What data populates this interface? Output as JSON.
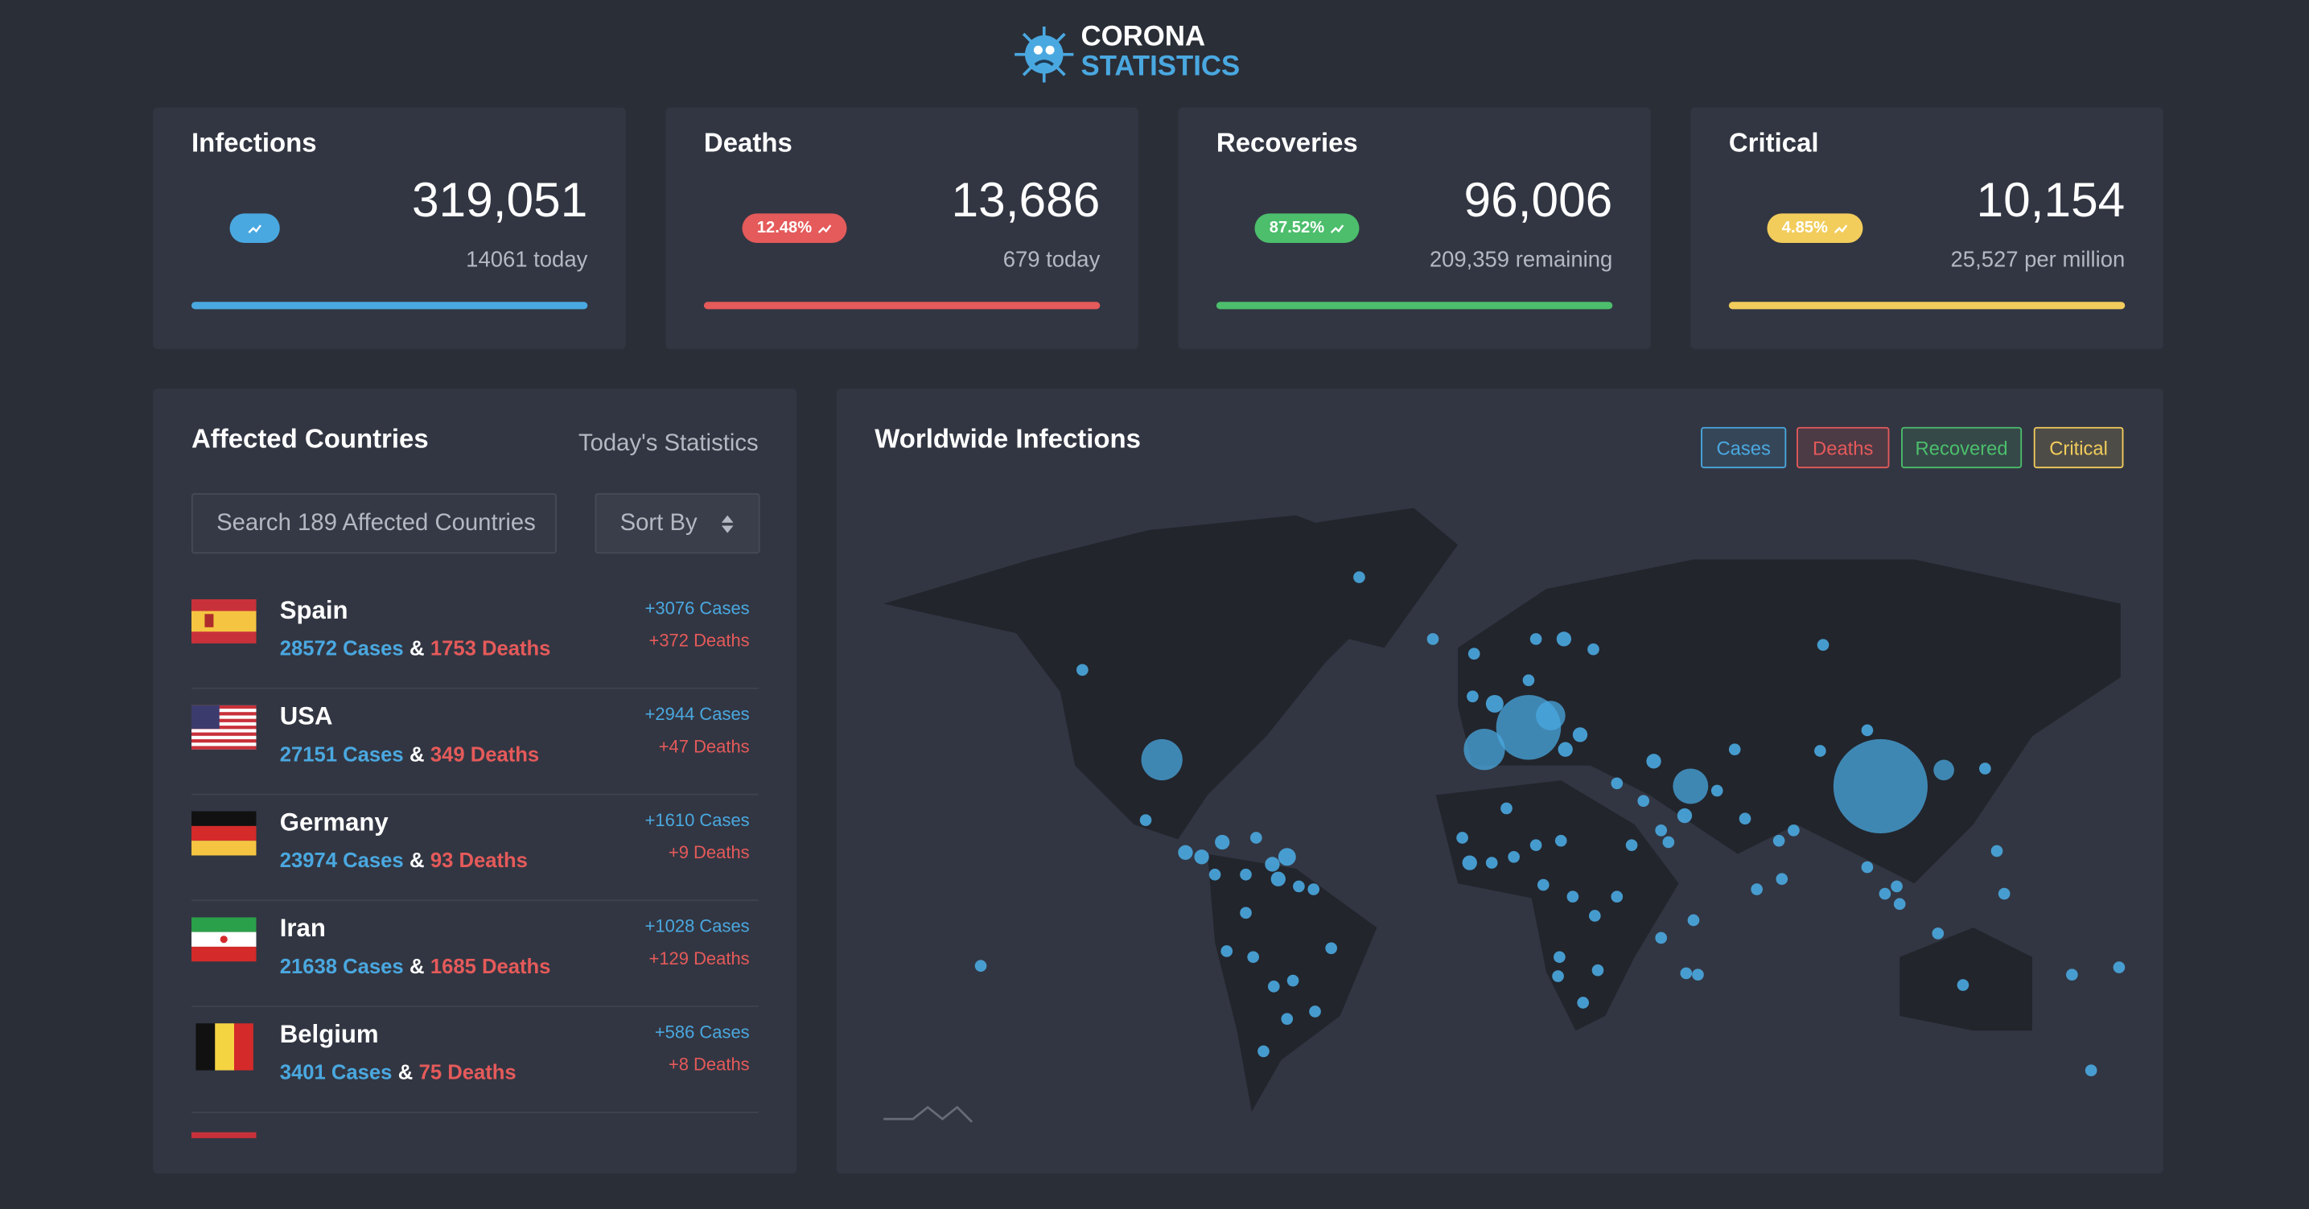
{
  "header": {
    "title_top": "CORONA",
    "title_bottom": "STATISTICS"
  },
  "cards": [
    {
      "title": "Infections",
      "value": "319,051",
      "sub": "14061 today",
      "badge": null
    },
    {
      "title": "Deaths",
      "value": "13,686",
      "sub": "679 today",
      "badge": "12.48%"
    },
    {
      "title": "Recoveries",
      "value": "96,006",
      "sub": "209,359 remaining",
      "badge": "87.52%"
    },
    {
      "title": "Critical",
      "value": "10,154",
      "sub": "25,527 per million",
      "badge": "4.85%"
    }
  ],
  "countries": {
    "title": "Affected Countries",
    "subtitle": "Today's Statistics",
    "search_placeholder": "Search 189 Affected Countries",
    "sort_label": "Sort By",
    "connector": "&",
    "rows": [
      {
        "name": "Spain",
        "cases": "28572 Cases",
        "deaths": "1753 Deaths",
        "today_cases": "+3076 Cases",
        "today_deaths": "+372 Deaths"
      },
      {
        "name": "USA",
        "cases": "27151 Cases",
        "deaths": "349 Deaths",
        "today_cases": "+2944 Cases",
        "today_deaths": "+47 Deaths"
      },
      {
        "name": "Germany",
        "cases": "23974 Cases",
        "deaths": "93 Deaths",
        "today_cases": "+1610 Cases",
        "today_deaths": "+9 Deaths"
      },
      {
        "name": "Iran",
        "cases": "21638 Cases",
        "deaths": "1685 Deaths",
        "today_cases": "+1028 Cases",
        "today_deaths": "+129 Deaths"
      },
      {
        "name": "Belgium",
        "cases": "3401 Cases",
        "deaths": "75 Deaths",
        "today_cases": "+586 Cases",
        "today_deaths": "+8 Deaths"
      }
    ]
  },
  "map": {
    "title": "Worldwide Infections",
    "legend": [
      "Cases",
      "Deaths",
      "Recovered",
      "Critical"
    ]
  }
}
